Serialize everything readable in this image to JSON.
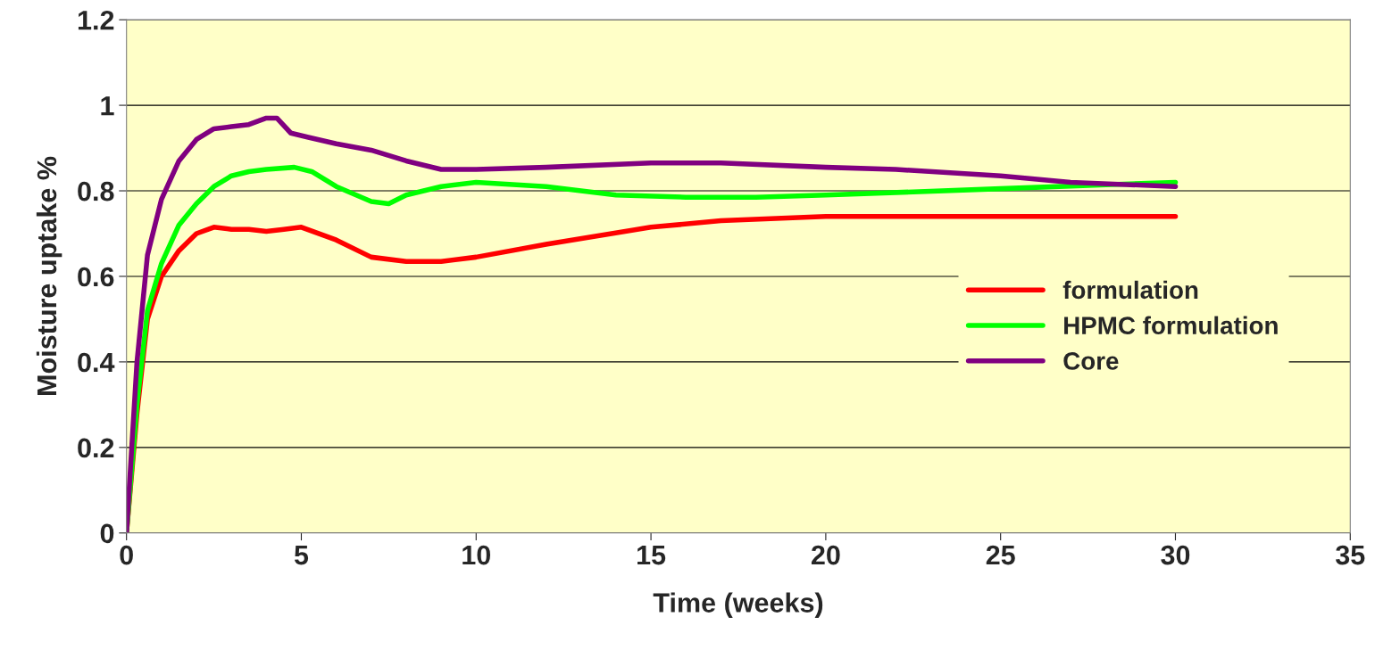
{
  "chart_data": {
    "type": "line",
    "xlabel": "Time (weeks)",
    "ylabel": "Moisture uptake %",
    "xlim": [
      0,
      35
    ],
    "xticks": [
      0,
      5,
      10,
      15,
      20,
      25,
      30,
      35
    ],
    "ylim": [
      0,
      1.2
    ],
    "yticks": [
      0,
      0.2,
      0.4,
      0.6,
      0.8,
      1,
      1.2
    ],
    "grid": "y",
    "legend": "right",
    "marker": "none",
    "line_style": "solid",
    "series": [
      {
        "name": "formulation",
        "color": "#ff0000",
        "x": [
          0,
          0.3,
          0.6,
          1,
          1.5,
          2,
          2.5,
          3,
          3.5,
          4,
          4.5,
          5,
          6,
          7,
          8,
          9,
          10,
          12,
          15,
          17,
          20,
          25,
          30
        ],
        "values": [
          0,
          0.28,
          0.5,
          0.6,
          0.66,
          0.7,
          0.715,
          0.71,
          0.71,
          0.705,
          0.71,
          0.715,
          0.685,
          0.645,
          0.635,
          0.635,
          0.645,
          0.675,
          0.715,
          0.73,
          0.74,
          0.74,
          0.74
        ]
      },
      {
        "name": "HPMC formulation",
        "color": "#00ff00",
        "x": [
          0,
          0.3,
          0.6,
          1,
          1.5,
          2,
          2.5,
          3,
          3.5,
          4,
          4.8,
          5.3,
          6,
          7,
          7.5,
          8,
          9,
          10,
          12,
          14,
          16,
          18,
          20,
          25,
          30
        ],
        "values": [
          0,
          0.3,
          0.52,
          0.63,
          0.72,
          0.77,
          0.81,
          0.835,
          0.845,
          0.85,
          0.855,
          0.845,
          0.81,
          0.775,
          0.77,
          0.79,
          0.81,
          0.82,
          0.81,
          0.79,
          0.785,
          0.785,
          0.79,
          0.805,
          0.82
        ]
      },
      {
        "name": "Core",
        "color": "#800080",
        "x": [
          0,
          0.3,
          0.6,
          1,
          1.5,
          2,
          2.5,
          3,
          3.5,
          4,
          4.3,
          4.7,
          5.2,
          6,
          7,
          8,
          9,
          10,
          12,
          15,
          17,
          20,
          22,
          25,
          27,
          30
        ],
        "values": [
          0,
          0.4,
          0.65,
          0.78,
          0.87,
          0.92,
          0.945,
          0.95,
          0.955,
          0.97,
          0.97,
          0.935,
          0.925,
          0.91,
          0.895,
          0.87,
          0.85,
          0.85,
          0.855,
          0.865,
          0.865,
          0.855,
          0.85,
          0.835,
          0.82,
          0.81
        ]
      }
    ]
  }
}
